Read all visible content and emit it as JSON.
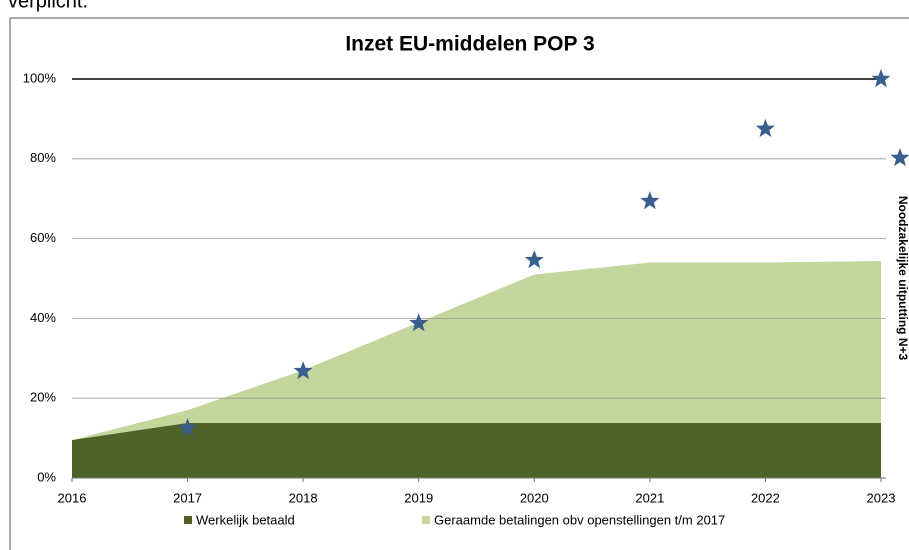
{
  "header_text": "verplicht.",
  "chart_data": {
    "type": "area",
    "title": "Inzet EU-middelen POP 3",
    "x": [
      2016,
      2017,
      2018,
      2019,
      2020,
      2021,
      2022,
      2023
    ],
    "xlim": [
      2016,
      2023
    ],
    "xticks": [
      2016,
      2017,
      2018,
      2019,
      2020,
      2021,
      2022,
      2023
    ],
    "ylim": [
      0,
      100
    ],
    "yticks": [
      {
        "value": 0,
        "label": "0%"
      },
      {
        "value": 20,
        "label": "20%"
      },
      {
        "value": 40,
        "label": "40%"
      },
      {
        "value": 60,
        "label": "60%"
      },
      {
        "value": 80,
        "label": "80%"
      },
      {
        "value": 100,
        "label": "100%"
      }
    ],
    "grid": true,
    "legend": "bottom",
    "series": [
      {
        "name": "Geraamde betalingen obv openstellingen t/m 2017",
        "kind": "area",
        "color": "#c3d69b",
        "values": [
          9.5,
          17,
          27,
          39,
          51,
          54,
          54,
          54.4
        ]
      },
      {
        "name": "Werkelijk betaald",
        "kind": "area",
        "color": "#4f6228",
        "values": [
          9.5,
          13.8,
          13.8,
          13.8,
          13.8,
          13.8,
          13.8,
          13.8
        ]
      },
      {
        "name": "Noodzakelijke uitputting N+3",
        "kind": "star",
        "color": "#3a5f8f",
        "values": [
          null,
          12.5,
          26.8,
          38.8,
          54.6,
          69.4,
          87.5,
          100
        ]
      }
    ]
  }
}
